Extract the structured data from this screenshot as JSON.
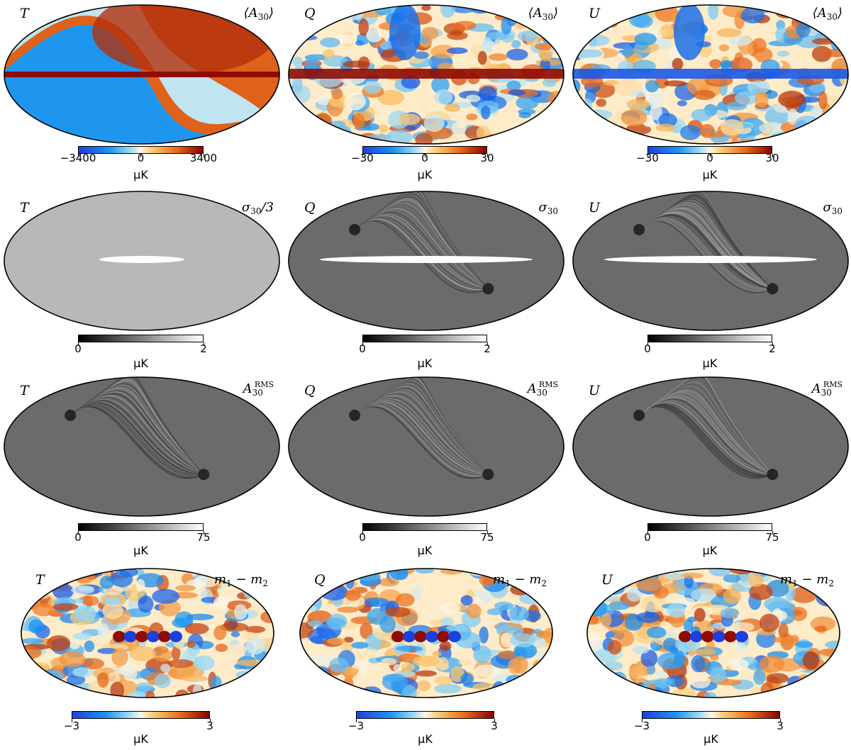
{
  "colors": {
    "div_neg": "#1f3fe0",
    "div_mid": "#fff6e6",
    "div_pos": "#8b0000",
    "gray_low": "#000000",
    "gray_high": "#ffffff"
  },
  "rows": [
    {
      "panels": [
        {
          "stokes": "T",
          "label": "⟨A30⟩",
          "cmap": "diverging",
          "ticks": [
            "−3400",
            "0",
            "3400"
          ],
          "unit": "μK"
        },
        {
          "stokes": "Q",
          "label": "⟨A30⟩",
          "cmap": "diverging",
          "ticks": [
            "−30",
            "0",
            "30"
          ],
          "unit": "μK"
        },
        {
          "stokes": "U",
          "label": "⟨A30⟩",
          "cmap": "diverging",
          "ticks": [
            "−30",
            "0",
            "30"
          ],
          "unit": "μK"
        }
      ]
    },
    {
      "panels": [
        {
          "stokes": "T",
          "label": "σ30/3",
          "cmap": "gray",
          "ticks": [
            "0",
            "2"
          ],
          "unit": "μK"
        },
        {
          "stokes": "Q",
          "label": "σ30",
          "cmap": "gray",
          "ticks": [
            "0",
            "2"
          ],
          "unit": "μK"
        },
        {
          "stokes": "U",
          "label": "σ30",
          "cmap": "gray",
          "ticks": [
            "0",
            "2"
          ],
          "unit": "μK"
        }
      ]
    },
    {
      "panels": [
        {
          "stokes": "T",
          "label": "A30RMS",
          "cmap": "gray",
          "ticks": [
            "0",
            "75"
          ],
          "unit": "μK"
        },
        {
          "stokes": "Q",
          "label": "A30RMS",
          "cmap": "gray",
          "ticks": [
            "0",
            "75"
          ],
          "unit": "μK"
        },
        {
          "stokes": "U",
          "label": "A30RMS",
          "cmap": "gray",
          "ticks": [
            "0",
            "75"
          ],
          "unit": "μK"
        }
      ]
    },
    {
      "panels": [
        {
          "stokes": "T",
          "label": "m1 − m2",
          "cmap": "diverging",
          "ticks": [
            "−3",
            "3"
          ],
          "unit": "μK"
        },
        {
          "stokes": "Q",
          "label": "m1 − m2",
          "cmap": "diverging",
          "ticks": [
            "−3",
            "3"
          ],
          "unit": "μK"
        },
        {
          "stokes": "U",
          "label": "m1 − m2",
          "cmap": "diverging",
          "ticks": [
            "−3",
            "3"
          ],
          "unit": "μK"
        }
      ]
    }
  ]
}
